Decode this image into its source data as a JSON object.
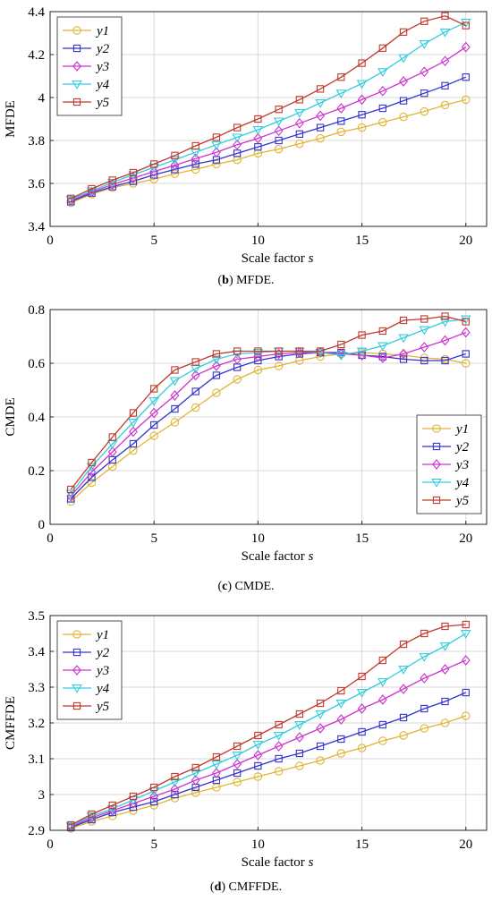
{
  "figures": [
    {
      "caption_letter": "b",
      "caption_text": " MFDE.",
      "chart_data": {
        "type": "line",
        "xlabel": "Scale factor",
        "xlabel_var": "s",
        "ylabel": "MFDE",
        "xlim": [
          0,
          21
        ],
        "ylim": [
          3.4,
          4.4
        ],
        "xticks": [
          0,
          5,
          10,
          15,
          20
        ],
        "xtick_labels": [
          "0",
          "5",
          "10",
          "15",
          "20"
        ],
        "yticks": [
          3.4,
          3.6,
          3.8,
          4.0,
          4.2,
          4.4
        ],
        "ytick_labels": [
          "3.4",
          "3.6",
          "3.8",
          "4",
          "4.2",
          "4.4"
        ],
        "legend_position": "top-left",
        "x": [
          1,
          2,
          3,
          4,
          5,
          6,
          7,
          8,
          9,
          10,
          11,
          12,
          13,
          14,
          15,
          16,
          17,
          18,
          19,
          20
        ],
        "series": [
          {
            "name": "y1",
            "values": [
              3.51,
              3.55,
              3.58,
              3.6,
              3.62,
              3.645,
              3.665,
              3.69,
              3.71,
              3.74,
              3.76,
              3.785,
              3.81,
              3.84,
              3.86,
              3.885,
              3.91,
              3.935,
              3.965,
              3.99
            ]
          },
          {
            "name": "y2",
            "values": [
              3.515,
              3.555,
              3.585,
              3.61,
              3.64,
              3.665,
              3.69,
              3.71,
              3.74,
              3.77,
              3.8,
              3.83,
              3.86,
              3.89,
              3.92,
              3.95,
              3.985,
              4.02,
              4.055,
              4.095
            ]
          },
          {
            "name": "y3",
            "values": [
              3.52,
              3.56,
              3.595,
              3.625,
              3.655,
              3.685,
              3.715,
              3.745,
              3.78,
              3.81,
              3.845,
              3.88,
              3.915,
              3.95,
              3.99,
              4.03,
              4.075,
              4.12,
              4.17,
              4.235
            ]
          },
          {
            "name": "y4",
            "values": [
              3.525,
              3.565,
              3.605,
              3.64,
              3.675,
              3.71,
              3.745,
              3.78,
              3.815,
              3.85,
              3.89,
              3.93,
              3.975,
              4.02,
              4.065,
              4.12,
              4.185,
              4.25,
              4.305,
              4.35
            ]
          },
          {
            "name": "y5",
            "values": [
              3.53,
              3.575,
              3.615,
              3.65,
              3.69,
              3.73,
              3.775,
              3.815,
              3.86,
              3.9,
              3.945,
              3.99,
              4.04,
              4.095,
              4.16,
              4.23,
              4.305,
              4.355,
              4.38,
              4.335
            ]
          }
        ]
      }
    },
    {
      "caption_letter": "c",
      "caption_text": " CMDE.",
      "chart_data": {
        "type": "line",
        "xlabel": "Scale factor",
        "xlabel_var": "s",
        "ylabel": "CMDE",
        "xlim": [
          0,
          21
        ],
        "ylim": [
          0,
          0.8
        ],
        "xticks": [
          0,
          5,
          10,
          15,
          20
        ],
        "xtick_labels": [
          "0",
          "5",
          "10",
          "15",
          "20"
        ],
        "yticks": [
          0,
          0.2,
          0.4,
          0.6,
          0.8
        ],
        "ytick_labels": [
          "0",
          "0.2",
          "0.4",
          "0.6",
          "0.8"
        ],
        "legend_position": "bottom-right",
        "x": [
          1,
          2,
          3,
          4,
          5,
          6,
          7,
          8,
          9,
          10,
          11,
          12,
          13,
          14,
          15,
          16,
          17,
          18,
          19,
          20
        ],
        "series": [
          {
            "name": "y1",
            "values": [
              0.085,
              0.155,
              0.215,
              0.275,
              0.33,
              0.38,
              0.435,
              0.49,
              0.54,
              0.575,
              0.59,
              0.61,
              0.625,
              0.635,
              0.64,
              0.635,
              0.63,
              0.62,
              0.615,
              0.6
            ]
          },
          {
            "name": "y2",
            "values": [
              0.095,
              0.175,
              0.24,
              0.3,
              0.37,
              0.43,
              0.495,
              0.555,
              0.585,
              0.61,
              0.625,
              0.635,
              0.64,
              0.64,
              0.63,
              0.625,
              0.615,
              0.61,
              0.61,
              0.635
            ]
          },
          {
            "name": "y3",
            "values": [
              0.105,
              0.195,
              0.27,
              0.345,
              0.415,
              0.48,
              0.555,
              0.59,
              0.615,
              0.625,
              0.635,
              0.64,
              0.64,
              0.635,
              0.63,
              0.62,
              0.635,
              0.66,
              0.685,
              0.715
            ]
          },
          {
            "name": "y4",
            "values": [
              0.115,
              0.215,
              0.3,
              0.38,
              0.46,
              0.535,
              0.58,
              0.615,
              0.635,
              0.64,
              0.645,
              0.645,
              0.64,
              0.63,
              0.645,
              0.665,
              0.695,
              0.725,
              0.755,
              0.765
            ]
          },
          {
            "name": "y5",
            "values": [
              0.13,
              0.23,
              0.325,
              0.415,
              0.505,
              0.575,
              0.605,
              0.635,
              0.645,
              0.645,
              0.645,
              0.645,
              0.645,
              0.67,
              0.705,
              0.72,
              0.76,
              0.765,
              0.775,
              0.755
            ]
          }
        ]
      }
    },
    {
      "caption_letter": "d",
      "caption_text": " CMFFDE.",
      "chart_data": {
        "type": "line",
        "xlabel": "Scale factor",
        "xlabel_var": "s",
        "ylabel": "CMFFDE",
        "xlim": [
          0,
          21
        ],
        "ylim": [
          2.9,
          3.5
        ],
        "xticks": [
          0,
          5,
          10,
          15,
          20
        ],
        "xtick_labels": [
          "0",
          "5",
          "10",
          "15",
          "20"
        ],
        "yticks": [
          2.9,
          3.0,
          3.1,
          3.2,
          3.3,
          3.4,
          3.5
        ],
        "ytick_labels": [
          "2.9",
          "3",
          "3.1",
          "3.2",
          "3.3",
          "3.4",
          "3.5"
        ],
        "legend_position": "top-left",
        "x": [
          1,
          2,
          3,
          4,
          5,
          6,
          7,
          8,
          9,
          10,
          11,
          12,
          13,
          14,
          15,
          16,
          17,
          18,
          19,
          20
        ],
        "series": [
          {
            "name": "y1",
            "values": [
              2.905,
              2.925,
              2.94,
              2.955,
              2.97,
              2.99,
              3.005,
              3.02,
              3.035,
              3.05,
              3.065,
              3.08,
              3.095,
              3.115,
              3.13,
              3.15,
              3.165,
              3.185,
              3.2,
              3.22
            ]
          },
          {
            "name": "y2",
            "values": [
              2.908,
              2.93,
              2.95,
              2.965,
              2.98,
              3.0,
              3.02,
              3.04,
              3.06,
              3.08,
              3.1,
              3.115,
              3.135,
              3.155,
              3.175,
              3.195,
              3.215,
              3.24,
              3.26,
              3.285
            ]
          },
          {
            "name": "y3",
            "values": [
              2.91,
              2.935,
              2.955,
              2.975,
              2.995,
              3.015,
              3.04,
              3.06,
              3.085,
              3.11,
              3.135,
              3.16,
              3.185,
              3.21,
              3.24,
              3.265,
              3.295,
              3.325,
              3.35,
              3.375
            ]
          },
          {
            "name": "y4",
            "values": [
              2.912,
              2.94,
              2.96,
              2.985,
              3.01,
              3.035,
              3.06,
              3.085,
              3.11,
              3.14,
              3.165,
              3.195,
              3.225,
              3.255,
              3.285,
              3.315,
              3.35,
              3.385,
              3.415,
              3.45
            ]
          },
          {
            "name": "y5",
            "values": [
              2.915,
              2.945,
              2.97,
              2.995,
              3.02,
              3.05,
              3.075,
              3.105,
              3.135,
              3.165,
              3.195,
              3.225,
              3.255,
              3.29,
              3.33,
              3.375,
              3.42,
              3.45,
              3.47,
              3.475
            ]
          }
        ]
      }
    }
  ],
  "series_styles": [
    {
      "name": "y1",
      "color": "#e0b534",
      "marker": "circle"
    },
    {
      "name": "y2",
      "color": "#3333cc",
      "marker": "square"
    },
    {
      "name": "y3",
      "color": "#cc33cc",
      "marker": "diamond"
    },
    {
      "name": "y4",
      "color": "#33ccdd",
      "marker": "triangle-down"
    },
    {
      "name": "y5",
      "color": "#c0392b",
      "marker": "square"
    }
  ]
}
